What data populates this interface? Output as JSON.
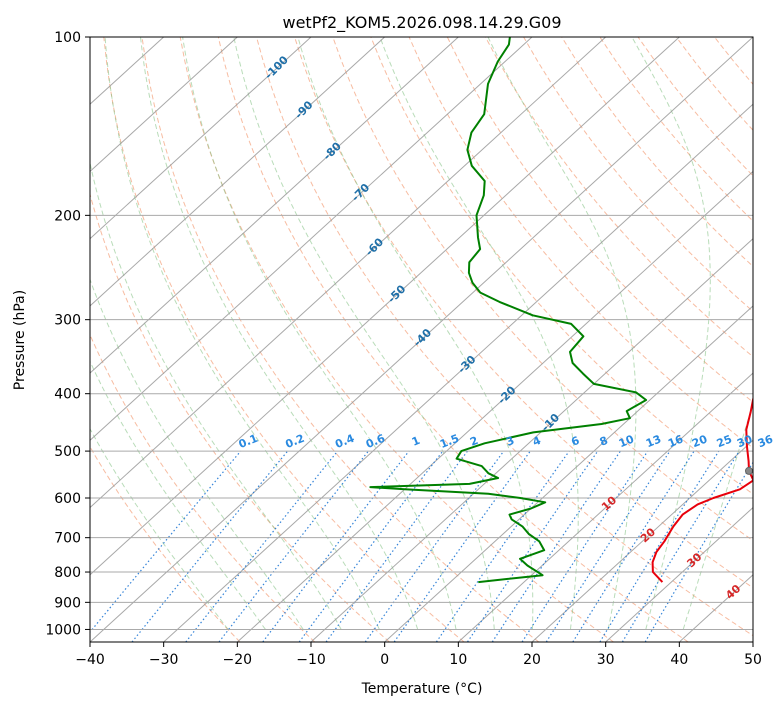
{
  "chart_data": {
    "type": "line",
    "subtype": "skew-t log-p sounding",
    "title": "wetPf2_KOM5.2026.098.14.29.G09",
    "xlabel": "Temperature (°C)",
    "ylabel": "Pressure (hPa)",
    "xlim": [
      -40,
      50
    ],
    "ylim": [
      1050,
      100
    ],
    "x_ticks": [
      -40,
      -30,
      -20,
      -10,
      0,
      10,
      20,
      30,
      40,
      50
    ],
    "x_tick_labels": [
      "−40",
      "−30",
      "−20",
      "−10",
      "0",
      "10",
      "20",
      "30",
      "40",
      "50"
    ],
    "y_ticks": [
      100,
      200,
      300,
      400,
      500,
      600,
      700,
      800,
      900,
      1000
    ],
    "y_tick_labels": [
      "100",
      "200",
      "300",
      "400",
      "500",
      "600",
      "700",
      "800",
      "900",
      "1000"
    ],
    "grid": true,
    "skew_isotherm_labels": [
      "-100",
      "-90",
      "-80",
      "-70",
      "-60",
      "-50",
      "-40",
      "-30",
      "-20",
      "-10"
    ],
    "mixing_ratio_labels": [
      "0.1",
      "0.2",
      "0.4",
      "0.6",
      "1",
      "1.5",
      "2",
      "3",
      "4",
      "6",
      "8",
      "10",
      "13",
      "16",
      "20",
      "25",
      "30",
      "36"
    ],
    "dry_adiabat_labels": [
      "10",
      "20",
      "30",
      "40"
    ],
    "series": [
      {
        "name": "Temperature",
        "color": "#e8000b",
        "points": [
          [
            832,
            28.8
          ],
          [
            800,
            26.0
          ],
          [
            770,
            24.5
          ],
          [
            740,
            23.5
          ],
          [
            710,
            23.0
          ],
          [
            690,
            22.5
          ],
          [
            670,
            22.0
          ],
          [
            640,
            21.5
          ],
          [
            615,
            22.0
          ],
          [
            600,
            23.2
          ],
          [
            580,
            25.5
          ],
          [
            560,
            26.0
          ],
          [
            540,
            24.0
          ],
          [
            520,
            22.5
          ],
          [
            490,
            20.0
          ],
          [
            460,
            17.5
          ],
          [
            430,
            15.5
          ],
          [
            410,
            14.0
          ],
          [
            390,
            12.5
          ],
          [
            370,
            12.0
          ],
          [
            340,
            9.0
          ],
          [
            310,
            6.5
          ],
          [
            280,
            4.5
          ],
          [
            250,
            2.5
          ],
          [
            230,
            1.0
          ],
          [
            210,
            -1.5
          ],
          [
            190,
            -4.0
          ],
          [
            175,
            -5.5
          ],
          [
            165,
            -6.0
          ],
          [
            157,
            -5.0
          ],
          [
            150,
            -4.0
          ],
          [
            142,
            -4.0
          ],
          [
            135,
            -5.0
          ],
          [
            125,
            -6.5
          ],
          [
            117,
            -7.0
          ],
          [
            108,
            -6.0
          ],
          [
            103,
            -5.0
          ],
          [
            100,
            -4.5
          ]
        ]
      },
      {
        "name": "Dewpoint",
        "color": "#008000",
        "points": [
          [
            832,
            3.8
          ],
          [
            810,
            11.5
          ],
          [
            780,
            8.0
          ],
          [
            760,
            6.0
          ],
          [
            735,
            8.0
          ],
          [
            710,
            6.0
          ],
          [
            690,
            3.5
          ],
          [
            670,
            1.5
          ],
          [
            652,
            -1.0
          ],
          [
            640,
            -2.0
          ],
          [
            625,
            0.0
          ],
          [
            610,
            1.0
          ],
          [
            600,
            -3.0
          ],
          [
            590,
            -8.0
          ],
          [
            580,
            -20.0
          ],
          [
            575,
            -25.0
          ],
          [
            568,
            -12.0
          ],
          [
            555,
            -9.0
          ],
          [
            545,
            -11.0
          ],
          [
            530,
            -13.0
          ],
          [
            515,
            -17.5
          ],
          [
            500,
            -18.0
          ],
          [
            485,
            -16.0
          ],
          [
            465,
            -11.0
          ],
          [
            450,
            -3.0
          ],
          [
            440,
            0.0
          ],
          [
            428,
            -1.5
          ],
          [
            410,
            -0.5
          ],
          [
            398,
            -3.0
          ],
          [
            385,
            -10.0
          ],
          [
            370,
            -13.0
          ],
          [
            355,
            -16.0
          ],
          [
            340,
            -18.0
          ],
          [
            320,
            -18.5
          ],
          [
            305,
            -22.0
          ],
          [
            295,
            -28.5
          ],
          [
            280,
            -35.0
          ],
          [
            270,
            -39.0
          ],
          [
            260,
            -41.5
          ],
          [
            250,
            -43.5
          ],
          [
            240,
            -45.0
          ],
          [
            228,
            -45.5
          ],
          [
            218,
            -47.5
          ],
          [
            200,
            -51.0
          ],
          [
            185,
            -53.0
          ],
          [
            175,
            -55.0
          ],
          [
            165,
            -59.0
          ],
          [
            155,
            -62.0
          ],
          [
            145,
            -64.0
          ],
          [
            135,
            -65.0
          ],
          [
            120,
            -69.0
          ],
          [
            110,
            -71.0
          ],
          [
            103,
            -72.0
          ],
          [
            100,
            -73.0
          ]
        ]
      }
    ],
    "annotations": [
      {
        "name": "LCL",
        "pressure": 540,
        "temperature": 24.0
      }
    ]
  }
}
